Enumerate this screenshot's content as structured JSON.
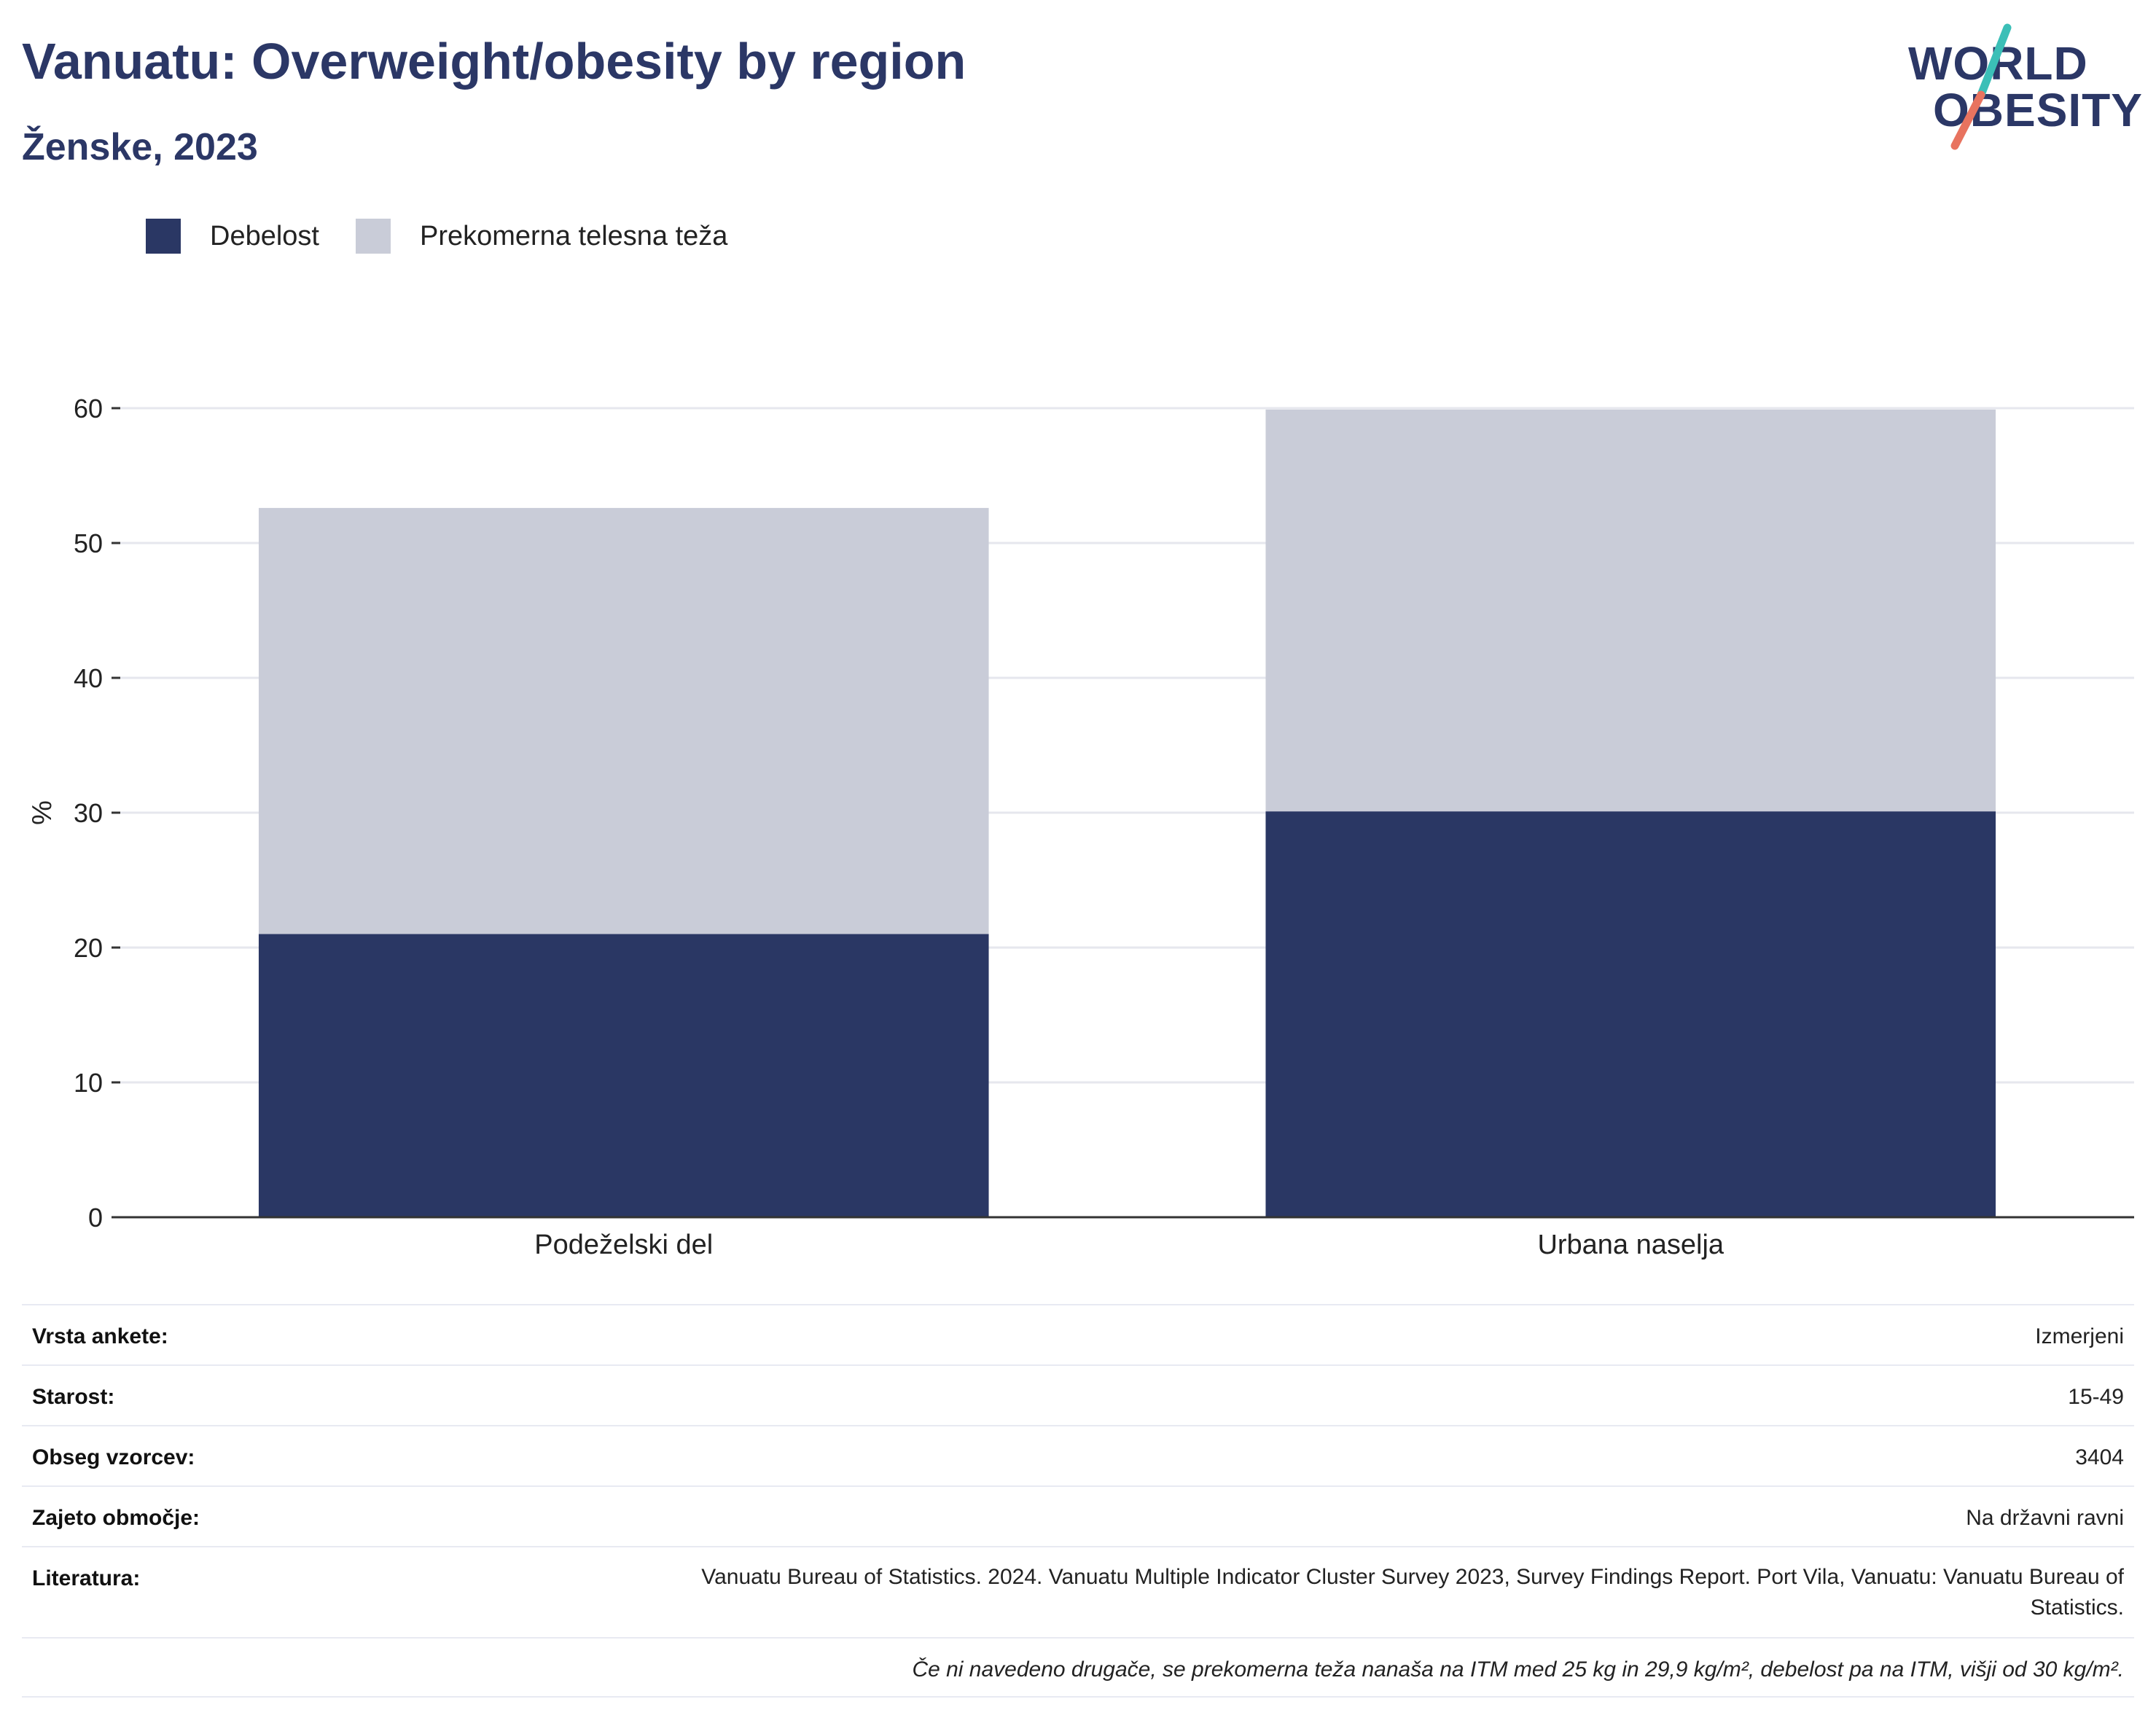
{
  "header": {
    "title": "Vanuatu: Overweight/obesity by region",
    "subtitle": "Ženske, 2023"
  },
  "logo": {
    "line1": "WORLD",
    "line2": "OBESITY"
  },
  "legend": [
    {
      "label": "Debelost",
      "color": "#2a3764"
    },
    {
      "label": "Prekomerna telesna teža",
      "color": "#c9ccd8"
    }
  ],
  "chart_data": {
    "type": "bar",
    "stacked": true,
    "categories": [
      "Podeželski del",
      "Urbana naselja"
    ],
    "series": [
      {
        "name": "Debelost",
        "color": "#2a3764",
        "values": [
          21.0,
          30.1
        ]
      },
      {
        "name": "Prekomerna telesna teža",
        "color": "#c9ccd8",
        "values": [
          31.6,
          29.8
        ]
      }
    ],
    "ylabel": "%",
    "ylim": [
      0,
      60
    ],
    "yticks": [
      0,
      10,
      20,
      30,
      40,
      50,
      60
    ],
    "grid": true,
    "legend_position": "top-left"
  },
  "info_table": {
    "rows": [
      {
        "label": "Vrsta ankete:",
        "value": "Izmerjeni"
      },
      {
        "label": "Starost:",
        "value": "15-49"
      },
      {
        "label": "Obseg vzorcev:",
        "value": "3404"
      },
      {
        "label": "Zajeto območje:",
        "value": "Na državni ravni"
      }
    ],
    "literature_label": "Literatura:",
    "literature_value": "Vanuatu Bureau of Statistics. 2024. Vanuatu Multiple Indicator Cluster Survey 2023, Survey Findings Report. Port Vila, Vanuatu: Vanuatu Bureau of Statistics.",
    "note": "Če ni navedeno drugače, se prekomerna teža nanaša na ITM med 25 kg in 29,9 kg/m², debelost pa na ITM, višji od 30 kg/m²."
  }
}
